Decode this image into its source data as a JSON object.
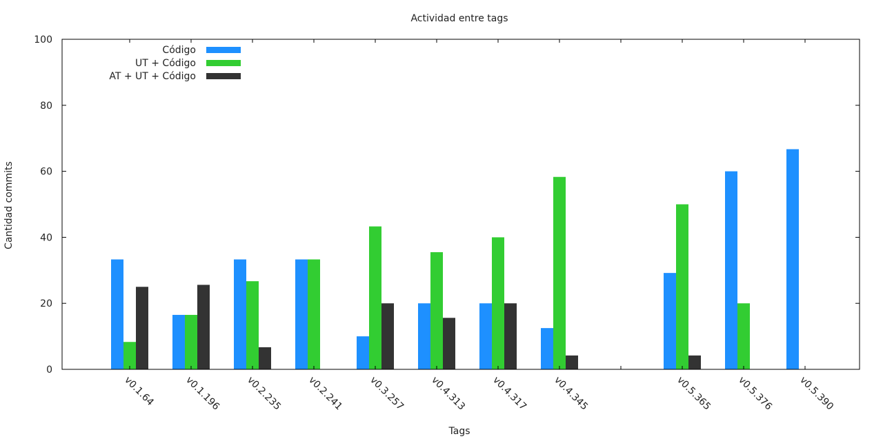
{
  "chart_data": {
    "type": "bar",
    "title": "Actividad entre tags",
    "xlabel": "Tags",
    "ylabel": "Cantidad commits",
    "ylim": [
      0,
      100
    ],
    "yticks": [
      "0",
      "20",
      "40",
      "60",
      "80",
      "100"
    ],
    "grid": false,
    "legend_position": "top-left",
    "categories": [
      "v0.1.64",
      "v0.1.196",
      "v0.2.235",
      "v0.2.241",
      "v0.3.257",
      "v0.4.313",
      "v0.4.317",
      "v0.4.345",
      "",
      "v0.5.365",
      "v0.5.376",
      "v0.5.390"
    ],
    "series": [
      {
        "name": "Código",
        "color": "#1e90ff",
        "values": [
          33.3,
          16.5,
          33.3,
          33.3,
          10,
          20,
          20,
          12.5,
          null,
          29.2,
          60,
          66.7
        ]
      },
      {
        "name": "UT + Código",
        "color": "#32cd32",
        "values": [
          8.3,
          16.5,
          26.7,
          33.3,
          43.3,
          35.5,
          40,
          58.3,
          null,
          50,
          20,
          0
        ]
      },
      {
        "name": "AT + UT + Código",
        "color": "#333333",
        "values": [
          25,
          25.6,
          6.7,
          0,
          20,
          15.6,
          20,
          4.2,
          null,
          4.2,
          0,
          0
        ]
      }
    ]
  }
}
